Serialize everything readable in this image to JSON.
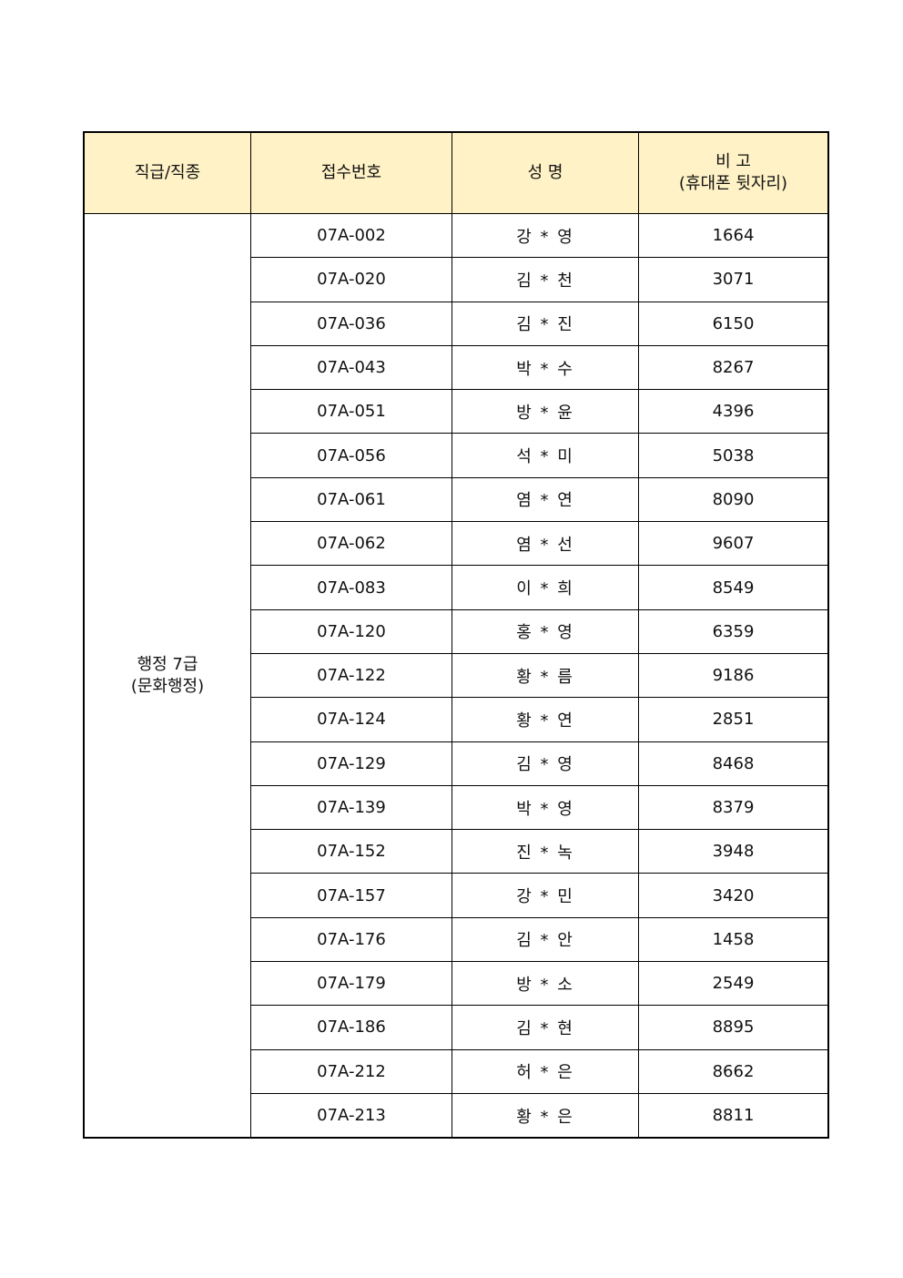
{
  "table": {
    "headers": {
      "category": "직급/직종",
      "receipt_no": "접수번호",
      "name": "성 명",
      "remarks_line1": "비 고",
      "remarks_line2": "(휴대폰 뒷자리)"
    },
    "category": {
      "line1": "행정 7급",
      "line2": "(문화행정)"
    },
    "rows": [
      {
        "receipt_no": "07A-002",
        "name": "강 * 영",
        "phone": "1664"
      },
      {
        "receipt_no": "07A-020",
        "name": "김 * 천",
        "phone": "3071"
      },
      {
        "receipt_no": "07A-036",
        "name": "김 * 진",
        "phone": "6150"
      },
      {
        "receipt_no": "07A-043",
        "name": "박 * 수",
        "phone": "8267"
      },
      {
        "receipt_no": "07A-051",
        "name": "방 * 윤",
        "phone": "4396"
      },
      {
        "receipt_no": "07A-056",
        "name": "석 * 미",
        "phone": "5038"
      },
      {
        "receipt_no": "07A-061",
        "name": "염 * 연",
        "phone": "8090"
      },
      {
        "receipt_no": "07A-062",
        "name": "염 * 선",
        "phone": "9607"
      },
      {
        "receipt_no": "07A-083",
        "name": "이 * 희",
        "phone": "8549"
      },
      {
        "receipt_no": "07A-120",
        "name": "홍 * 영",
        "phone": "6359"
      },
      {
        "receipt_no": "07A-122",
        "name": "황 * 름",
        "phone": "9186"
      },
      {
        "receipt_no": "07A-124",
        "name": "황 * 연",
        "phone": "2851"
      },
      {
        "receipt_no": "07A-129",
        "name": "김 * 영",
        "phone": "8468"
      },
      {
        "receipt_no": "07A-139",
        "name": "박 * 영",
        "phone": "8379"
      },
      {
        "receipt_no": "07A-152",
        "name": "진 * 녹",
        "phone": "3948"
      },
      {
        "receipt_no": "07A-157",
        "name": "강 * 민",
        "phone": "3420"
      },
      {
        "receipt_no": "07A-176",
        "name": "김 * 안",
        "phone": "1458"
      },
      {
        "receipt_no": "07A-179",
        "name": "방 * 소",
        "phone": "2549"
      },
      {
        "receipt_no": "07A-186",
        "name": "김 * 현",
        "phone": "8895"
      },
      {
        "receipt_no": "07A-212",
        "name": "허 * 은",
        "phone": "8662"
      },
      {
        "receipt_no": "07A-213",
        "name": "황 * 은",
        "phone": "8811"
      }
    ]
  },
  "colors": {
    "header_bg": "#fff2c6",
    "border": "#000000"
  }
}
